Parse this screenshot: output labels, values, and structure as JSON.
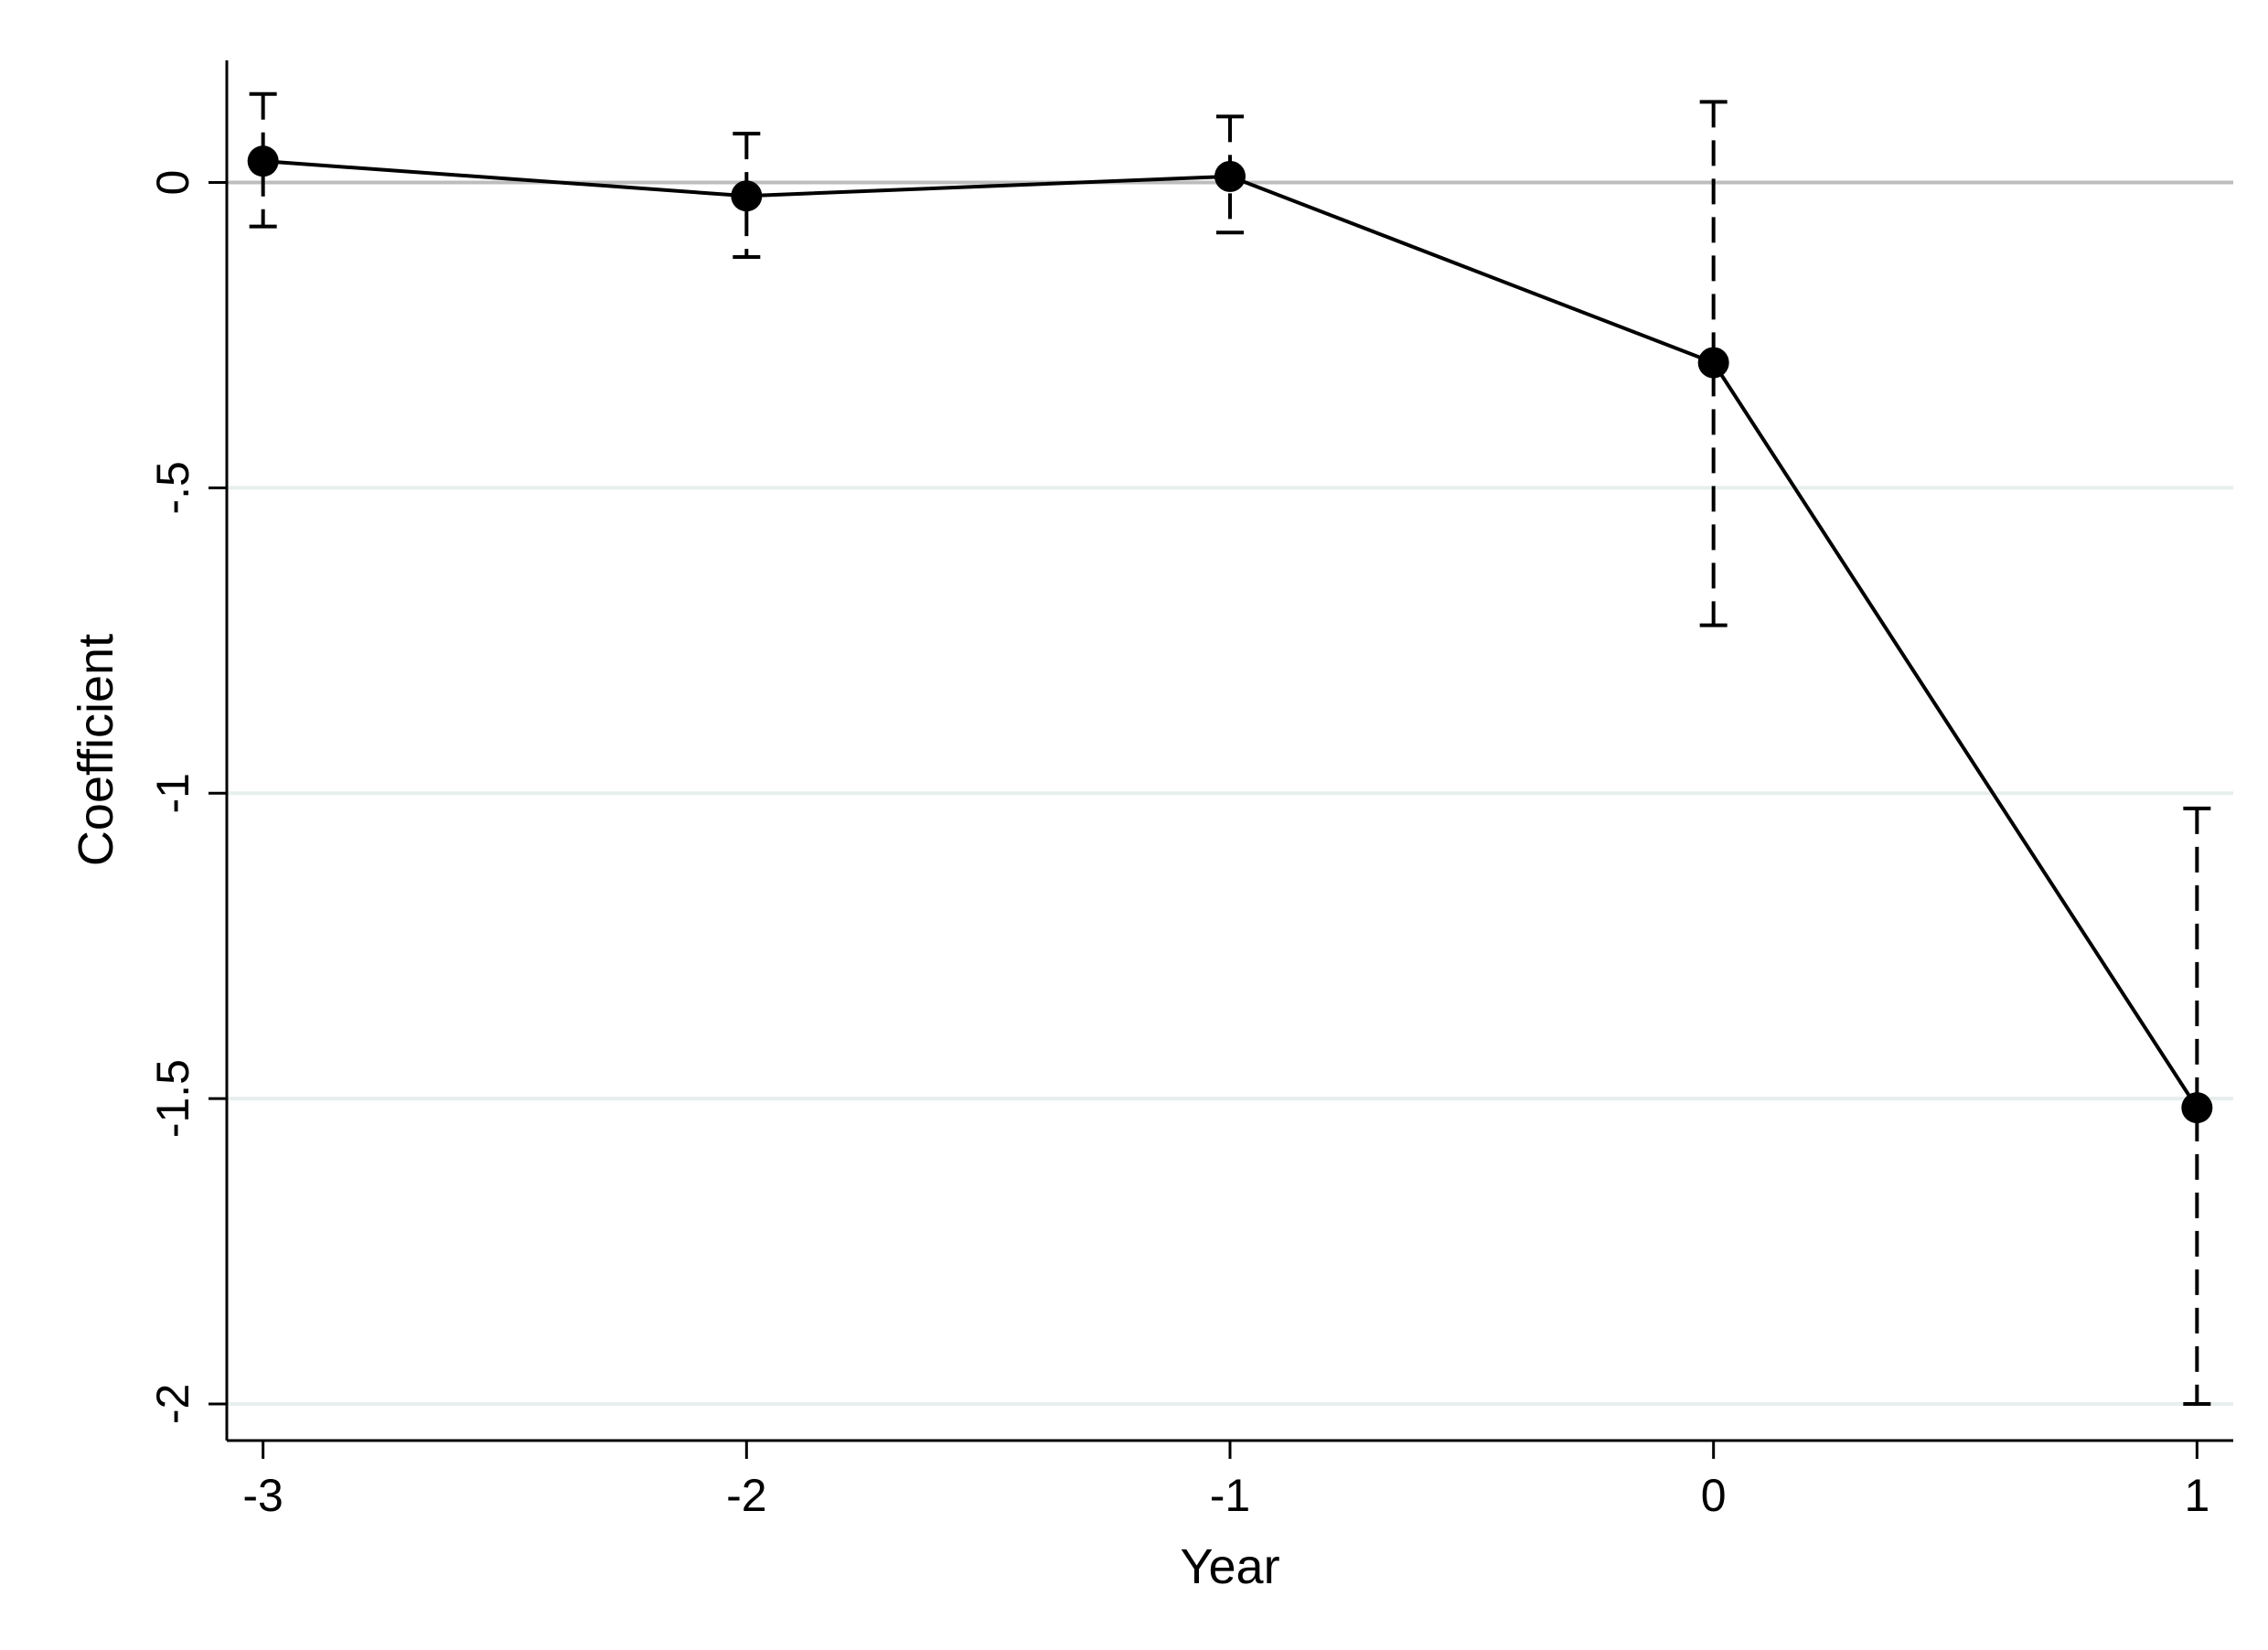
{
  "chart_data": {
    "type": "line",
    "xlabel": "Year",
    "ylabel": "Coefficient",
    "xlim": [
      -3.075,
      1.075
    ],
    "ylim": [
      -2.06,
      0.2
    ],
    "x_ticks": [
      "-3",
      "-2",
      "-1",
      "0",
      "1"
    ],
    "y_ticks": [
      "0",
      "-.5",
      "-1",
      "-1.5",
      "-2"
    ],
    "y_tick_values": [
      0,
      -0.5,
      -1,
      -1.5,
      -2
    ],
    "grid": "horizontal",
    "reference_line": 0,
    "series": [
      {
        "x": [
          -3,
          -2,
          -1,
          0,
          1
        ],
        "y": [
          0.035,
          -0.022,
          0.01,
          -0.295,
          -1.515
        ],
        "ci_low": [
          -0.072,
          -0.122,
          -0.082,
          -0.725,
          -2.0
        ],
        "ci_high": [
          0.145,
          0.08,
          0.108,
          0.132,
          -1.025
        ],
        "marker": "filled-circle",
        "line_style": "solid",
        "error_bar_style": "dashed"
      }
    ],
    "colors": {
      "line": "#000000",
      "grid": "#e7eeee",
      "zero_line": "#bdbdbd",
      "axis": "#000000"
    }
  }
}
